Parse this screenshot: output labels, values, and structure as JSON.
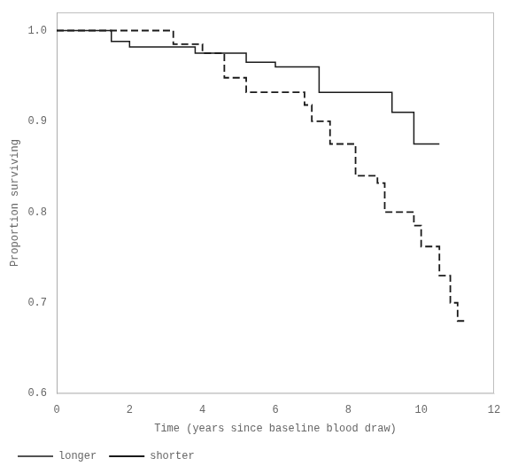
{
  "chart_data": {
    "type": "step",
    "xlabel": "Time (years since baseline blood draw)",
    "ylabel": "Proportion surviving",
    "series": [
      {
        "name": "longer",
        "color": "#1a1a1a",
        "line_style": "solid",
        "x": [
          0,
          1.5,
          1.5,
          2.0,
          2.0,
          3.8,
          3.8,
          5.2,
          5.2,
          6.0,
          6.0,
          7.2,
          7.2,
          9.2,
          9.2,
          9.8,
          9.8,
          10.5
        ],
        "values": [
          1.0,
          1.0,
          0.988,
          0.988,
          0.982,
          0.982,
          0.975,
          0.975,
          0.965,
          0.965,
          0.96,
          0.96,
          0.932,
          0.932,
          0.91,
          0.91,
          0.875,
          0.875
        ]
      },
      {
        "name": "shorter",
        "color": "#1a1a1a",
        "line_style": "dashed",
        "x": [
          0,
          3.2,
          3.2,
          4.0,
          4.0,
          4.6,
          4.6,
          5.2,
          5.2,
          6.8,
          6.8,
          7.0,
          7.0,
          7.5,
          7.5,
          8.2,
          8.2,
          8.8,
          8.8,
          9.0,
          9.0,
          9.8,
          9.8,
          10.0,
          10.0,
          10.5,
          10.5,
          10.8,
          10.8,
          11.0,
          11.0,
          11.2
        ],
        "values": [
          1.0,
          1.0,
          0.985,
          0.985,
          0.975,
          0.975,
          0.948,
          0.948,
          0.932,
          0.932,
          0.918,
          0.918,
          0.9,
          0.9,
          0.875,
          0.875,
          0.84,
          0.84,
          0.832,
          0.832,
          0.8,
          0.8,
          0.785,
          0.785,
          0.762,
          0.762,
          0.73,
          0.73,
          0.7,
          0.7,
          0.68,
          0.68
        ]
      }
    ],
    "xlim": [
      0,
      12
    ],
    "ylim": [
      0.6,
      1.02
    ],
    "xticks": [
      0,
      2,
      4,
      6,
      8,
      10,
      12
    ],
    "yticks": [
      0.6,
      0.7,
      0.8,
      0.9,
      {
        "value": 1.0,
        "label": "1.0"
      }
    ],
    "legend": "lower left",
    "grid": false
  }
}
